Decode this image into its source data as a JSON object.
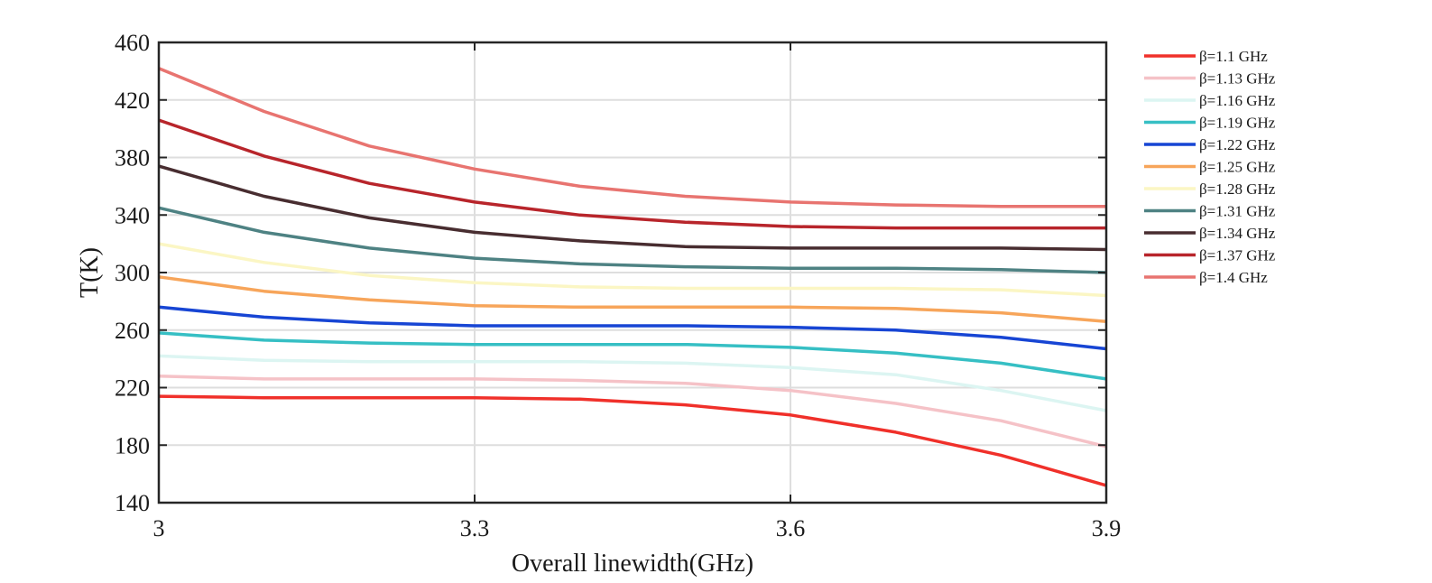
{
  "chart_data": {
    "type": "line",
    "xlabel": "Overall linewidth(GHz)",
    "ylabel": "T(K)",
    "xlim": [
      3.0,
      3.9
    ],
    "ylim": [
      140,
      460
    ],
    "xticks": [
      3,
      3.3,
      3.6,
      3.9
    ],
    "xtick_labels": [
      "3",
      "3.3",
      "3.6",
      "3.9"
    ],
    "yticks": [
      140,
      180,
      220,
      260,
      300,
      340,
      380,
      420,
      460
    ],
    "ytick_labels": [
      "140",
      "180",
      "220",
      "260",
      "300",
      "340",
      "380",
      "420",
      "460"
    ],
    "grid": true,
    "legend_position": "outside-right",
    "x": [
      3.0,
      3.1,
      3.2,
      3.3,
      3.4,
      3.5,
      3.6,
      3.7,
      3.8,
      3.9
    ],
    "series": [
      {
        "name": "β=1.1 GHz",
        "color": "#f0302a",
        "values": [
          214,
          213,
          213,
          213,
          212,
          208,
          201,
          189,
          173,
          152
        ]
      },
      {
        "name": "β=1.13 GHz",
        "color": "#f5c2c7",
        "values": [
          228,
          226,
          226,
          226,
          225,
          223,
          218,
          209,
          197,
          179
        ]
      },
      {
        "name": "β=1.16 GHz",
        "color": "#dcf5f2",
        "values": [
          242,
          239,
          238,
          238,
          238,
          237,
          234,
          229,
          218,
          204
        ]
      },
      {
        "name": "β=1.19 GHz",
        "color": "#36bfc4",
        "values": [
          258,
          253,
          251,
          250,
          250,
          250,
          248,
          244,
          237,
          226
        ]
      },
      {
        "name": "β=1.22 GHz",
        "color": "#1745d4",
        "values": [
          276,
          269,
          265,
          263,
          263,
          263,
          262,
          260,
          255,
          247
        ]
      },
      {
        "name": "β=1.25 GHz",
        "color": "#f7a55a",
        "values": [
          297,
          287,
          281,
          277,
          276,
          276,
          276,
          275,
          272,
          266
        ]
      },
      {
        "name": "β=1.28 GHz",
        "color": "#fbf6c4",
        "values": [
          320,
          307,
          298,
          293,
          290,
          289,
          289,
          289,
          288,
          284
        ]
      },
      {
        "name": "β=1.31 GHz",
        "color": "#4e8283",
        "values": [
          345,
          328,
          317,
          310,
          306,
          304,
          303,
          303,
          302,
          300
        ]
      },
      {
        "name": "β=1.34 GHz",
        "color": "#482d30",
        "values": [
          374,
          353,
          338,
          328,
          322,
          318,
          317,
          317,
          317,
          316
        ]
      },
      {
        "name": "β=1.37 GHz",
        "color": "#b8252b",
        "values": [
          406,
          381,
          362,
          349,
          340,
          335,
          332,
          331,
          331,
          331
        ]
      },
      {
        "name": "β=1.4 GHz",
        "color": "#e87470",
        "values": [
          442,
          412,
          388,
          372,
          360,
          353,
          349,
          347,
          346,
          346
        ]
      }
    ]
  }
}
